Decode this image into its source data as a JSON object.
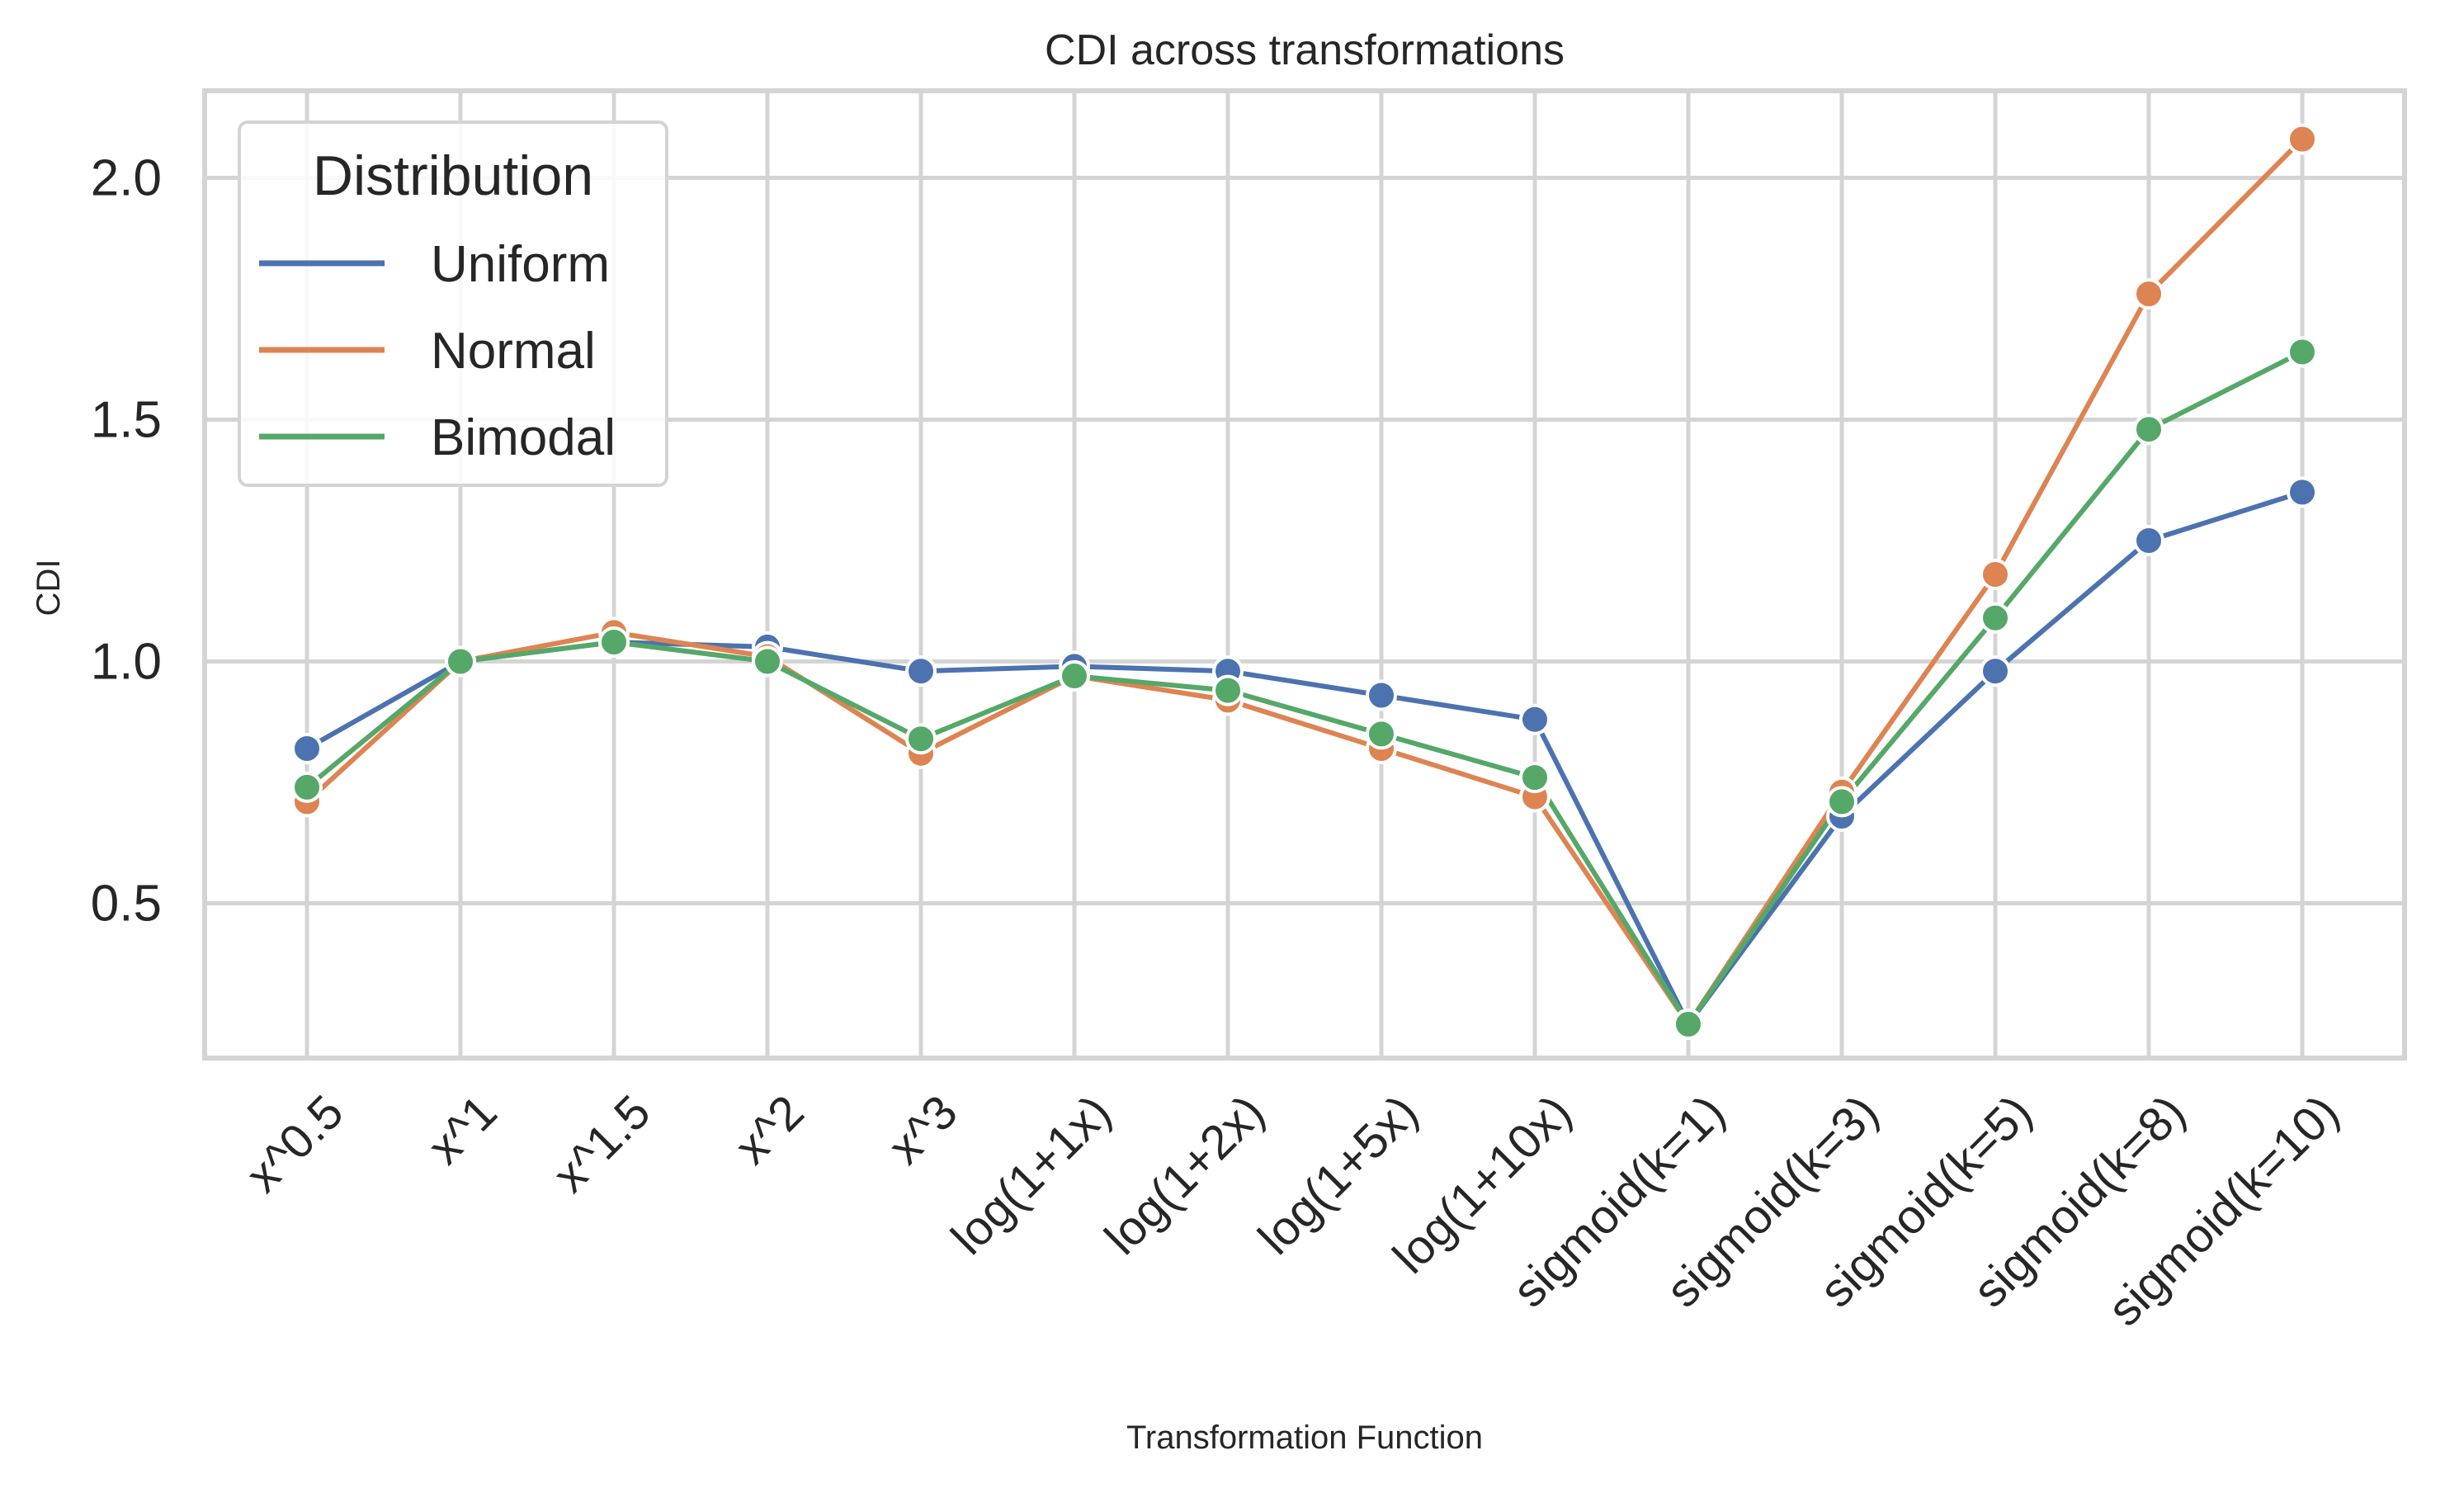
{
  "chart_data": {
    "type": "line",
    "title": "CDI across transformations",
    "xlabel": "Transformation Function",
    "ylabel": "CDI",
    "ylim": [
      0.18,
      2.18
    ],
    "yticks": [
      0.5,
      1.0,
      1.5,
      2.0
    ],
    "ytick_labels": [
      "0.5",
      "1.0",
      "1.5",
      "2.0"
    ],
    "grid": true,
    "markers": true,
    "legend": {
      "title": "Distribution",
      "placement": "top-left"
    },
    "categories": [
      "x^0.5",
      "x^1",
      "x^1.5",
      "x^2",
      "x^3",
      "log(1+1x)",
      "log(1+2x)",
      "log(1+5x)",
      "log(1+10x)",
      "sigmoid(k=1)",
      "sigmoid(k=3)",
      "sigmoid(k=5)",
      "sigmoid(k=8)",
      "sigmoid(k=10)"
    ],
    "series": [
      {
        "name": "Uniform",
        "color": "#4c72b0",
        "values": [
          0.82,
          1.0,
          1.04,
          1.03,
          0.98,
          0.99,
          0.98,
          0.93,
          0.88,
          0.25,
          0.68,
          0.98,
          1.25,
          1.35
        ]
      },
      {
        "name": "Normal",
        "color": "#dd8452",
        "values": [
          0.71,
          1.0,
          1.06,
          1.01,
          0.81,
          0.97,
          0.92,
          0.82,
          0.72,
          0.25,
          0.73,
          1.18,
          1.76,
          2.08
        ]
      },
      {
        "name": "Bimodal",
        "color": "#55a868",
        "values": [
          0.74,
          1.0,
          1.04,
          1.0,
          0.84,
          0.97,
          0.94,
          0.85,
          0.76,
          0.25,
          0.71,
          1.09,
          1.48,
          1.64
        ]
      }
    ]
  }
}
